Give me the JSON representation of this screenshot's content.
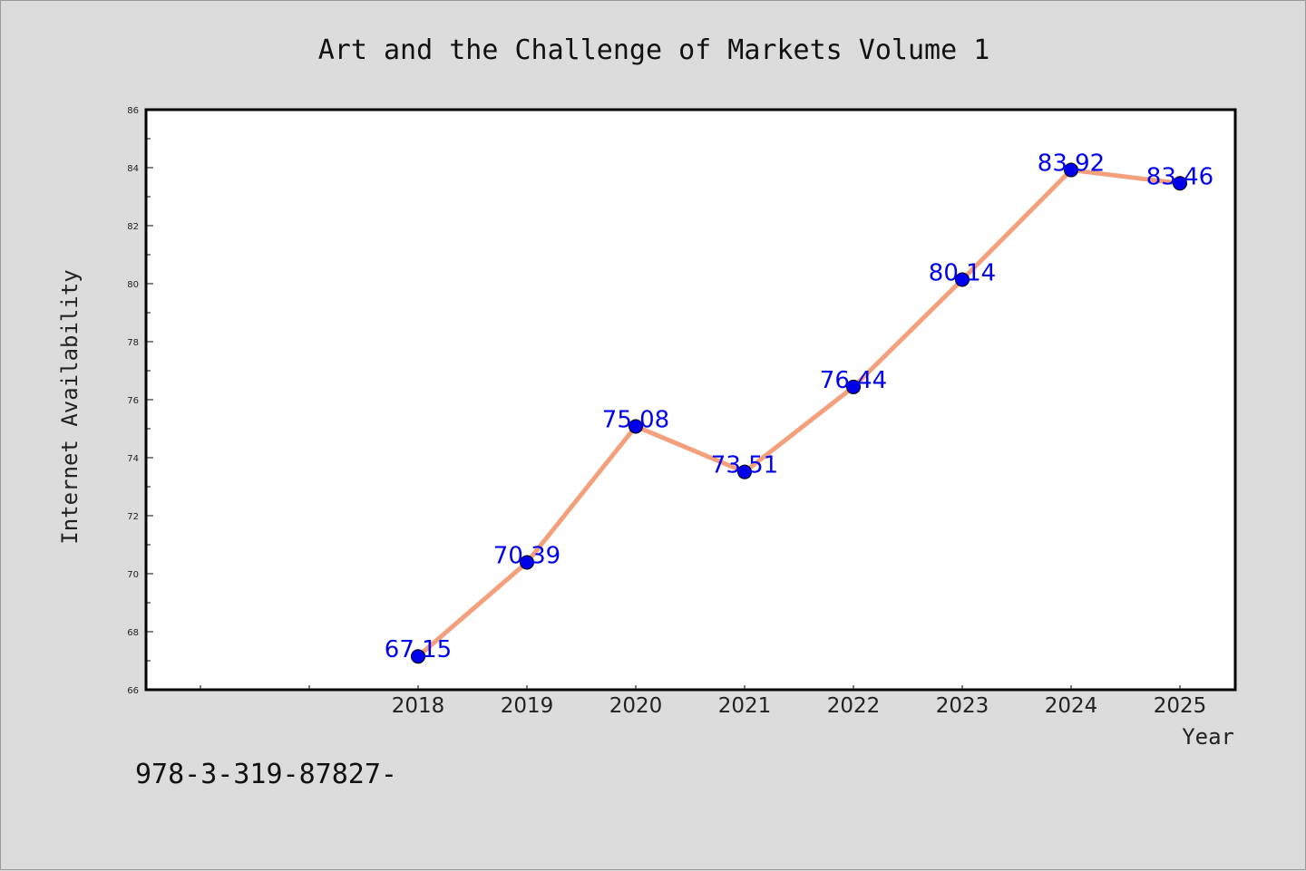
{
  "chart_data": {
    "type": "line",
    "title": "Art and the Challenge of Markets Volume 1",
    "xlabel": "Year",
    "ylabel": "Internet Availability",
    "categories": [
      "2018",
      "2019",
      "2020",
      "2021",
      "2022",
      "2023",
      "2024",
      "2025"
    ],
    "values": [
      67.15,
      70.39,
      75.08,
      73.51,
      76.44,
      80.14,
      83.92,
      83.46
    ],
    "data_labels": [
      "67.15",
      "70.39",
      "75.08",
      "73.51",
      "76.44",
      "80.14",
      "83.92",
      "83.46"
    ],
    "ylim": [
      66,
      86
    ],
    "yticks": [
      "66",
      "68",
      "70",
      "72",
      "74",
      "76",
      "78",
      "80",
      "82",
      "84",
      "86"
    ],
    "grid": false,
    "legend": "none",
    "line_color": "#f4a07c",
    "marker_color": "#0000ee",
    "label_color": "#0000ee"
  },
  "footer_text": "978-3-319-87827-"
}
